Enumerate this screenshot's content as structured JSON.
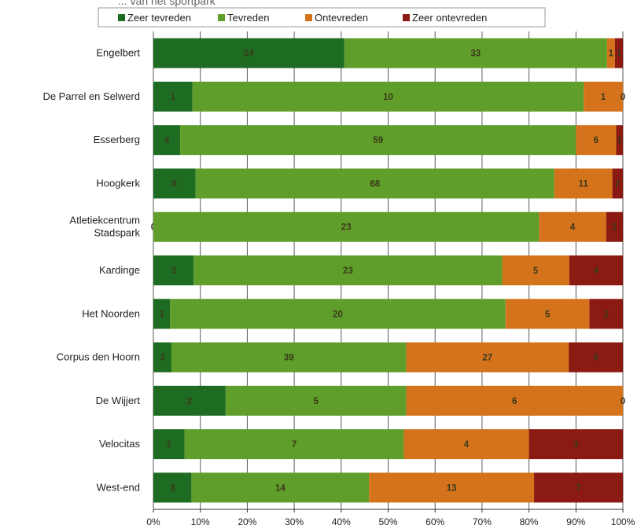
{
  "chart_data": {
    "type": "bar",
    "orientation": "horizontal",
    "stacked": true,
    "normalized": true,
    "title_partial": "... van het sportpark",
    "categories": [
      [
        "Engelbert"
      ],
      [
        "De Parrel en Selwerd"
      ],
      [
        "Esserberg"
      ],
      [
        "Hoogkerk"
      ],
      [
        "Atletiekcentrum",
        "Stadspark"
      ],
      [
        "Kardinge"
      ],
      [
        "Het Noorden"
      ],
      [
        "Corpus den Hoorn"
      ],
      [
        "De Wijjert"
      ],
      [
        "Velocitas"
      ],
      [
        "West-end"
      ]
    ],
    "series": [
      {
        "name": "Zeer tevreden",
        "color": "#1e6b22",
        "values": [
          24,
          1,
          4,
          8,
          0,
          3,
          1,
          3,
          2,
          1,
          3
        ]
      },
      {
        "name": "Tevreden",
        "color": "#5f9e2a",
        "values": [
          33,
          10,
          59,
          68,
          23,
          23,
          20,
          39,
          5,
          7,
          14
        ]
      },
      {
        "name": "Ontevreden",
        "color": "#d4731b",
        "values": [
          1,
          1,
          6,
          11,
          4,
          5,
          5,
          27,
          6,
          4,
          13
        ]
      },
      {
        "name": "Zeer ontevreden",
        "color": "#8b1a12",
        "values": [
          1,
          0,
          1,
          2,
          1,
          4,
          2,
          9,
          0,
          3,
          7
        ]
      }
    ],
    "shown_labels": [
      [
        "24",
        "33",
        "1",
        "1"
      ],
      [
        "1",
        "10",
        "1",
        "0"
      ],
      [
        "4",
        "59",
        "6",
        "1"
      ],
      [
        "8",
        "68",
        "11",
        "2"
      ],
      [
        "0",
        "23",
        "4",
        "1"
      ],
      [
        "3",
        "23",
        "5",
        "4"
      ],
      [
        "1",
        "20",
        "5",
        "2"
      ],
      [
        "3",
        "39",
        "27",
        "9"
      ],
      [
        "2",
        "5",
        "6",
        "0"
      ],
      [
        "1",
        "7",
        "4",
        "3"
      ],
      [
        "3",
        "14",
        "13",
        "7"
      ]
    ],
    "x_ticks": [
      "0%",
      "10%",
      "20%",
      "30%",
      "40%",
      "50%",
      "60%",
      "70%",
      "80%",
      "90%",
      "100%"
    ],
    "xlim": [
      0,
      100
    ],
    "x_unit": "%",
    "grid": true,
    "legend_position": "top"
  }
}
